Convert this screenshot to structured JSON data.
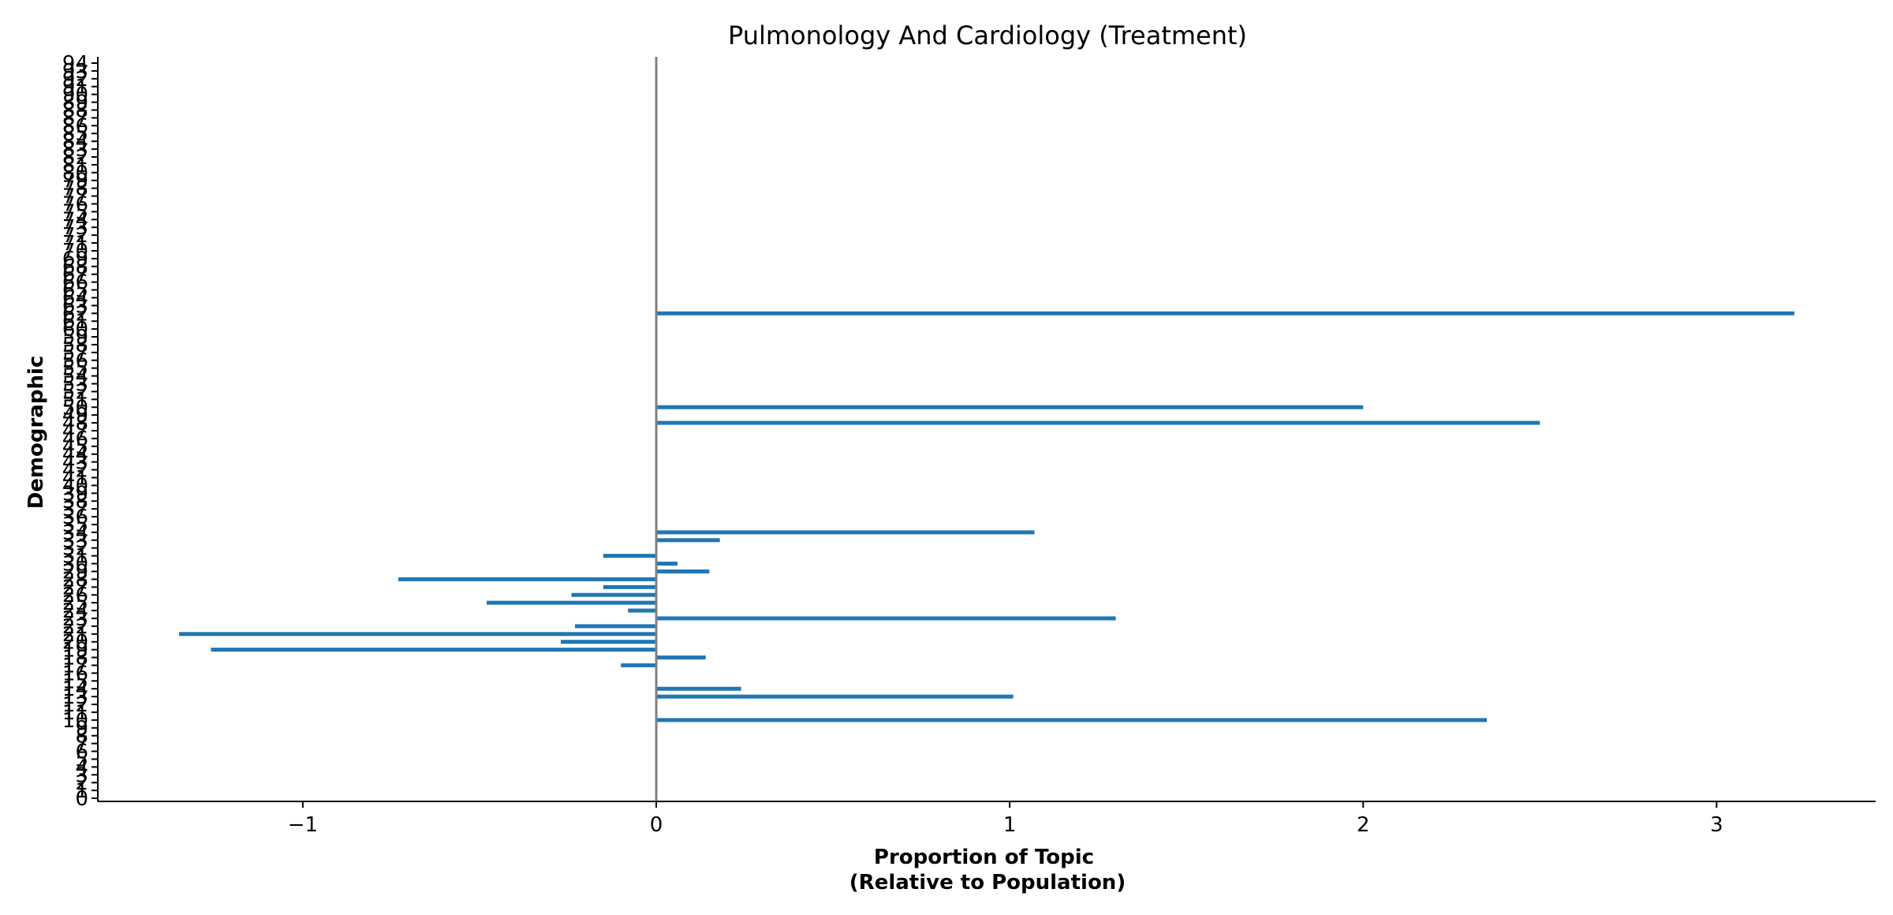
{
  "chart_data": {
    "type": "bar",
    "orientation": "horizontal",
    "title": "Pulmonology And Cardiology (Treatment)",
    "xlabel_line1": "Proportion of Topic",
    "xlabel_line2": "(Relative to Population)",
    "ylabel": "Demographic",
    "xlim": [
      -1.58,
      3.45
    ],
    "x_ticks": [
      -1,
      0,
      1,
      2,
      3
    ],
    "x_tick_labels": [
      "−1",
      "0",
      "1",
      "2",
      "3"
    ],
    "categories": [
      0,
      1,
      2,
      3,
      4,
      5,
      6,
      7,
      8,
      9,
      10,
      11,
      12,
      13,
      14,
      15,
      16,
      17,
      18,
      19,
      20,
      21,
      22,
      23,
      24,
      25,
      26,
      27,
      28,
      29,
      30,
      31,
      32,
      33,
      34,
      35,
      36,
      37,
      38,
      39,
      40,
      41,
      42,
      43,
      44,
      45,
      46,
      47,
      48,
      49,
      50,
      51,
      52,
      53,
      54,
      55,
      56,
      57,
      58,
      59,
      60,
      61,
      62,
      63,
      64,
      65,
      66,
      67,
      68,
      69,
      70,
      71,
      72,
      73,
      74,
      75,
      76,
      77,
      78,
      79,
      80,
      81,
      82,
      83,
      84,
      85,
      86,
      87,
      88,
      89,
      90,
      91,
      92,
      93,
      94
    ],
    "values": [
      0,
      0,
      0,
      0,
      0,
      0,
      0,
      0,
      0,
      0,
      2.35,
      0,
      0,
      1.01,
      0.24,
      0,
      0,
      -0.1,
      0.14,
      -1.26,
      -0.27,
      -1.35,
      -0.23,
      1.3,
      -0.08,
      -0.48,
      -0.24,
      -0.15,
      -0.73,
      0.15,
      0.06,
      -0.15,
      0,
      0.18,
      1.07,
      0,
      0,
      0,
      0,
      0,
      0,
      0,
      0,
      0,
      0,
      0,
      0,
      0,
      2.5,
      0,
      2.0,
      0,
      0,
      0,
      0,
      0,
      0,
      0,
      0,
      0,
      0,
      0,
      3.22,
      0,
      0,
      0,
      0,
      0,
      0,
      0,
      0,
      0,
      0,
      0,
      0,
      0,
      0,
      0,
      0,
      0,
      0,
      0,
      0,
      0,
      0,
      0,
      0,
      0,
      0,
      0,
      0,
      0,
      0,
      0,
      0
    ],
    "bar_color": "#1f77b4",
    "zero_line_color": "#808080",
    "grid": false,
    "legend": "none"
  }
}
